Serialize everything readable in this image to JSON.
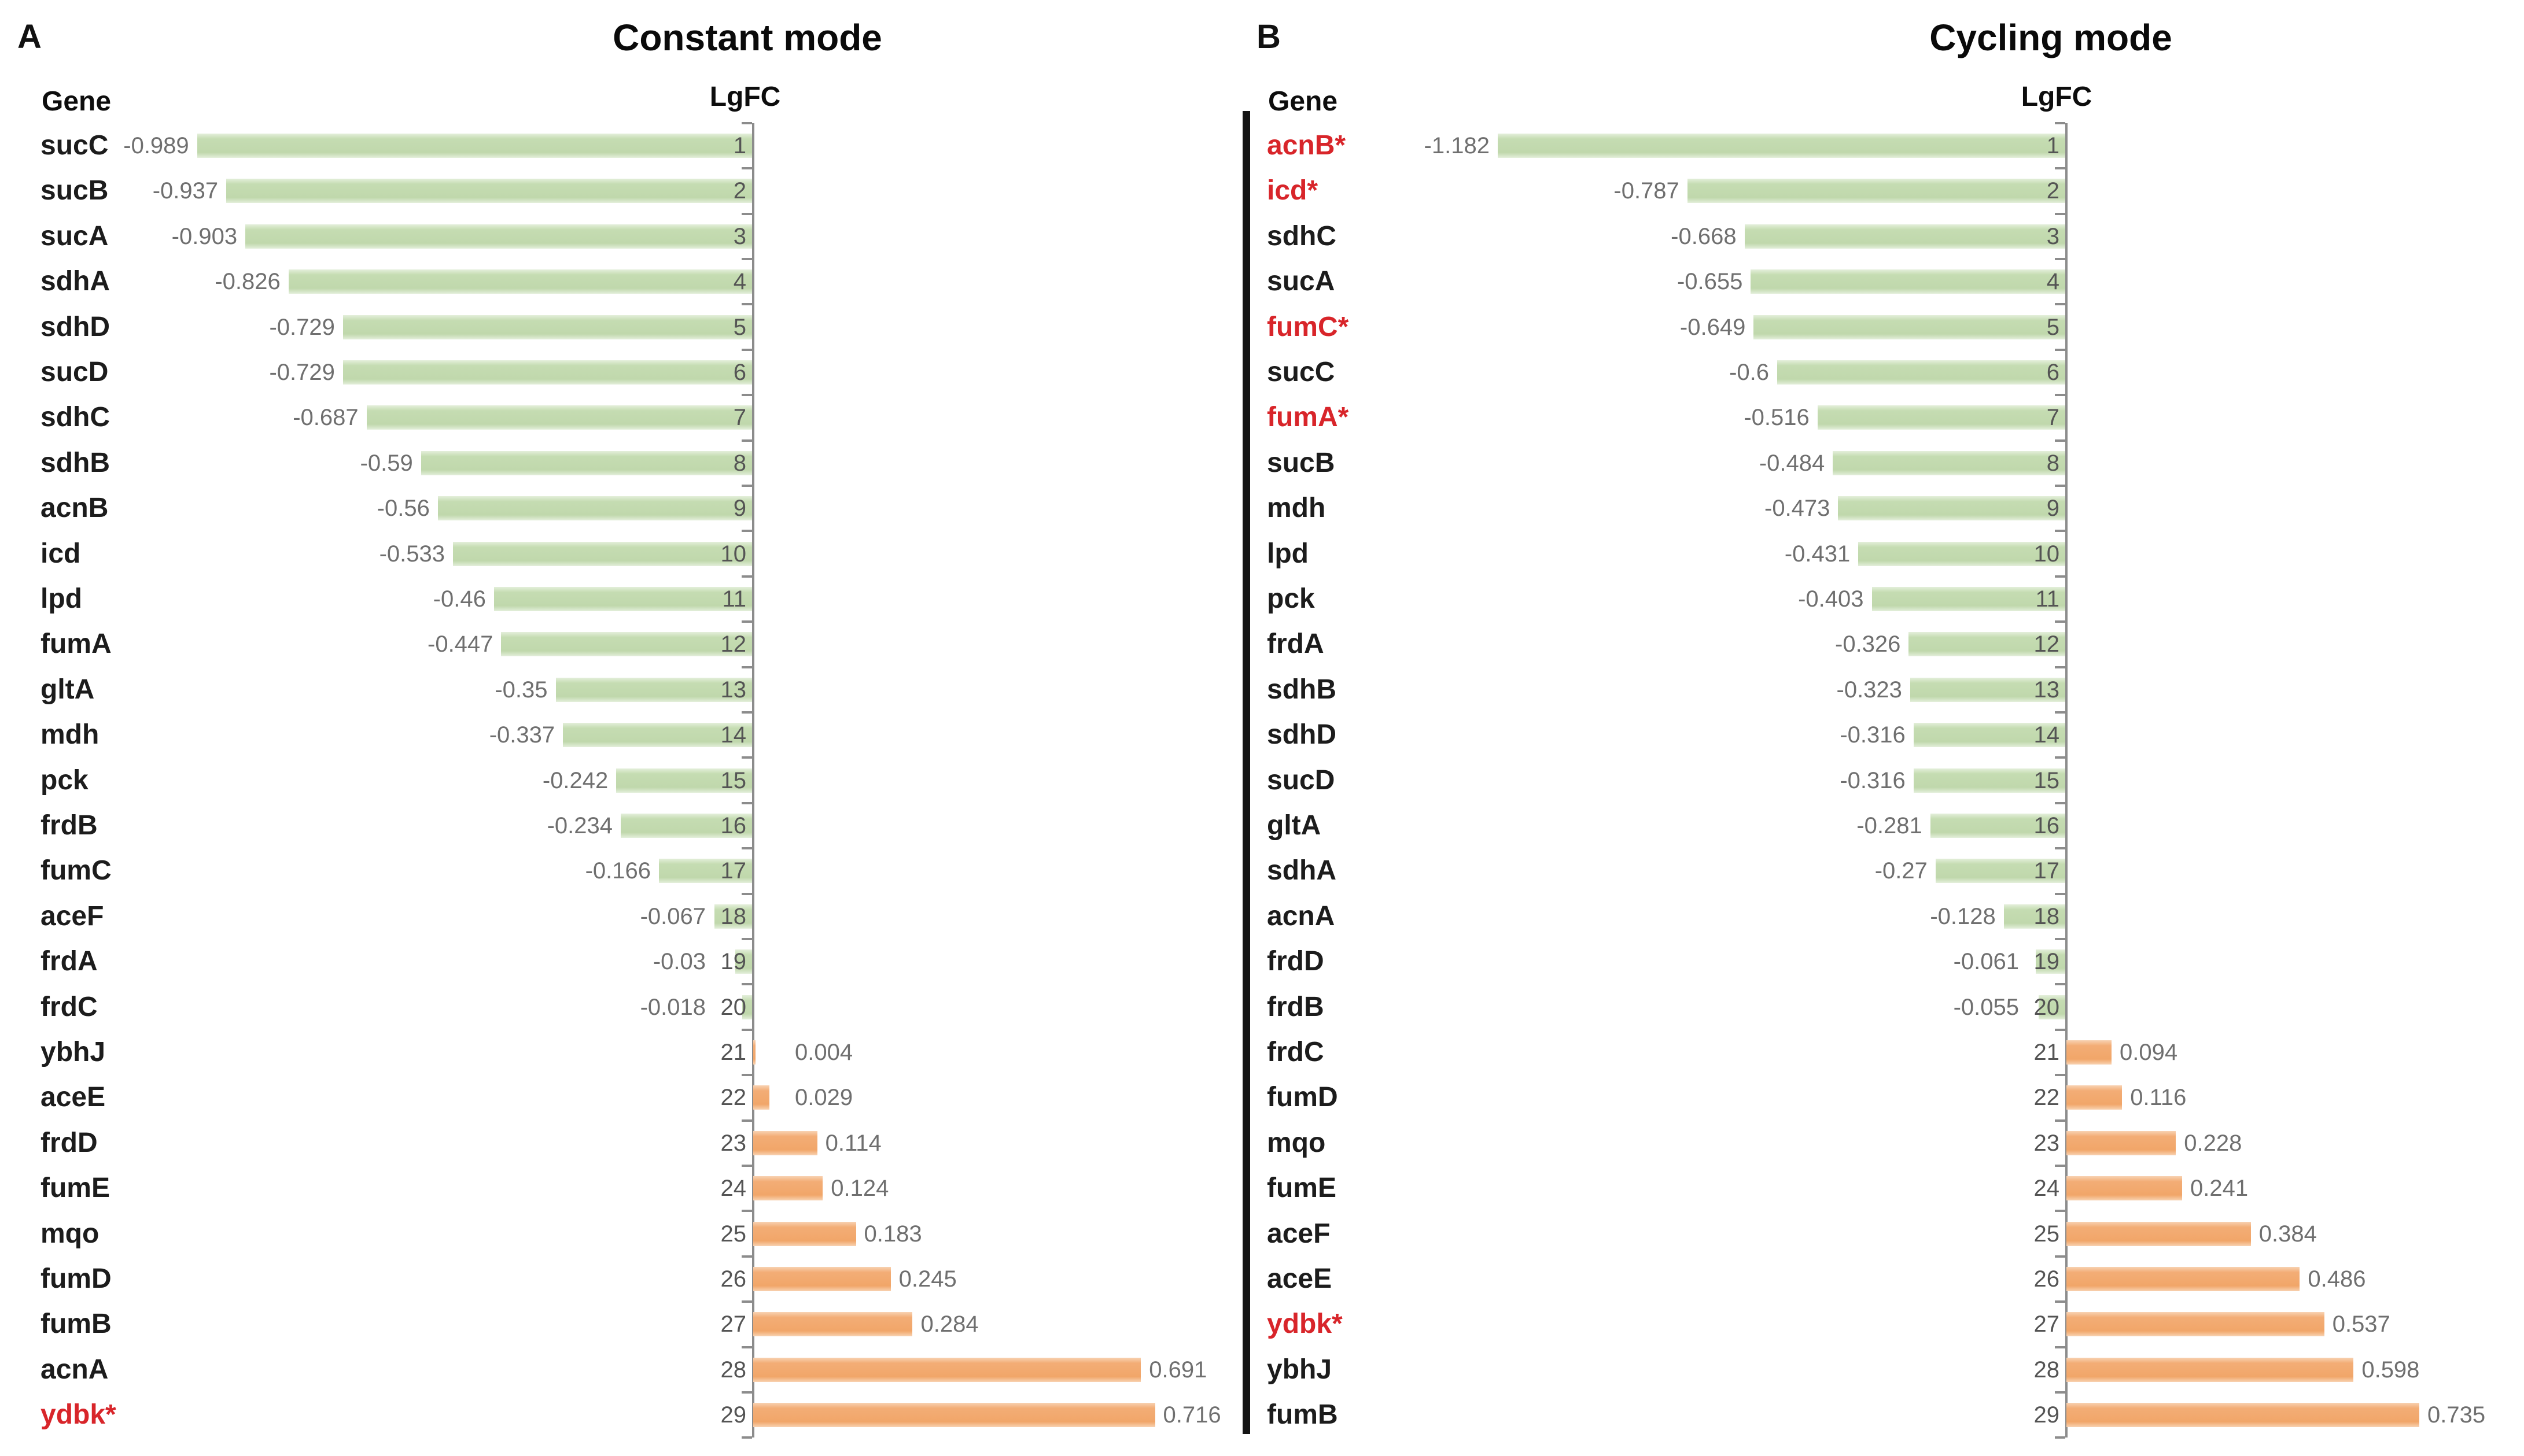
{
  "figure_background": "#ffffff",
  "colors": {
    "negative_bar": "#c2d9ae",
    "positive_bar": "#f2a96e",
    "highlight_gene_text": "#d8252a",
    "gene_text": "#1c1c1c",
    "value_text": "#6f6f6f",
    "rank_text": "#545454",
    "axis_line": "#8c8c8c",
    "panel_divider": "#141414"
  },
  "chart_data": [
    {
      "type": "bar",
      "orientation": "horizontal",
      "panel_label": "A",
      "title": "Constant mode",
      "category_header": "Gene",
      "value_header": "LgFC",
      "legend": "none",
      "grid": "off",
      "xlim": [
        -1.1,
        0.85
      ],
      "zero_axis_line": true,
      "categories": [
        "sucC",
        "sucB",
        "sucA",
        "sdhA",
        "sdhD",
        "sucD",
        "sdhC",
        "sdhB",
        "acnB",
        "icd",
        "lpd",
        "fumA",
        "gltA",
        "mdh",
        "pck",
        "frdB",
        "fumC",
        "aceF",
        "frdA",
        "frdC",
        "ybhJ",
        "aceE",
        "frdD",
        "fumE",
        "mqo",
        "fumD",
        "fumB",
        "acnA",
        "ydbk*"
      ],
      "values": [
        -0.989,
        -0.937,
        -0.903,
        -0.826,
        -0.729,
        -0.729,
        -0.687,
        -0.59,
        -0.56,
        -0.533,
        -0.46,
        -0.447,
        -0.35,
        -0.337,
        -0.242,
        -0.234,
        -0.166,
        -0.067,
        -0.03,
        -0.018,
        0.004,
        0.029,
        0.114,
        0.124,
        0.183,
        0.245,
        0.284,
        0.691,
        0.716
      ],
      "value_labels": [
        "-0.989",
        "-0.937",
        "-0.903",
        "-0.826",
        "-0.729",
        "-0.729",
        "-0.687",
        "-0.59",
        "-0.56",
        "-0.533",
        "-0.46",
        "-0.447",
        "-0.35",
        "-0.337",
        "-0.242",
        "-0.234",
        "-0.166",
        "-0.067",
        "-0.03",
        "-0.018",
        "0.004",
        "0.029",
        "0.114",
        "0.124",
        "0.183",
        "0.245",
        "0.284",
        "0.691",
        "0.716"
      ],
      "ranks": [
        1,
        2,
        3,
        4,
        5,
        6,
        7,
        8,
        9,
        10,
        11,
        12,
        13,
        14,
        15,
        16,
        17,
        18,
        19,
        20,
        21,
        22,
        23,
        24,
        25,
        26,
        27,
        28,
        29
      ],
      "highlighted_genes": [
        "ydbk*"
      ]
    },
    {
      "type": "bar",
      "orientation": "horizontal",
      "panel_label": "B",
      "title": "Cycling mode",
      "category_header": "Gene",
      "value_header": "LgFC",
      "legend": "none",
      "grid": "off",
      "xlim": [
        -1.35,
        0.95
      ],
      "zero_axis_line": true,
      "categories": [
        "acnB*",
        "icd*",
        "sdhC",
        "sucA",
        "fumC*",
        "sucC",
        "fumA*",
        "sucB",
        "mdh",
        "lpd",
        "pck",
        "frdA",
        "sdhB",
        "sdhD",
        "sucD",
        "gltA",
        "sdhA",
        "acnA",
        "frdD",
        "frdB",
        "frdC",
        "fumD",
        "mqo",
        "fumE",
        "aceF",
        "aceE",
        "ydbk*",
        "ybhJ",
        "fumB"
      ],
      "values": [
        -1.182,
        -0.787,
        -0.668,
        -0.655,
        -0.649,
        -0.6,
        -0.516,
        -0.484,
        -0.473,
        -0.431,
        -0.403,
        -0.326,
        -0.323,
        -0.316,
        -0.316,
        -0.281,
        -0.27,
        -0.128,
        -0.061,
        -0.055,
        0.094,
        0.116,
        0.228,
        0.241,
        0.384,
        0.486,
        0.537,
        0.598,
        0.735
      ],
      "value_labels": [
        "-1.182",
        "-0.787",
        "-0.668",
        "-0.655",
        "-0.649",
        "-0.6",
        "-0.516",
        "-0.484",
        "-0.473",
        "-0.431",
        "-0.403",
        "-0.326",
        "-0.323",
        "-0.316",
        "-0.316",
        "-0.281",
        "-0.27",
        "-0.128",
        "-0.061",
        "-0.055",
        "0.094",
        "0.116",
        "0.228",
        "0.241",
        "0.384",
        "0.486",
        "0.537",
        "0.598",
        "0.735"
      ],
      "ranks": [
        1,
        2,
        3,
        4,
        5,
        6,
        7,
        8,
        9,
        10,
        11,
        12,
        13,
        14,
        15,
        16,
        17,
        18,
        19,
        20,
        21,
        22,
        23,
        24,
        25,
        26,
        27,
        28,
        29
      ],
      "highlighted_genes": [
        "acnB*",
        "icd*",
        "fumC*",
        "fumA*",
        "ydbk*"
      ]
    }
  ]
}
